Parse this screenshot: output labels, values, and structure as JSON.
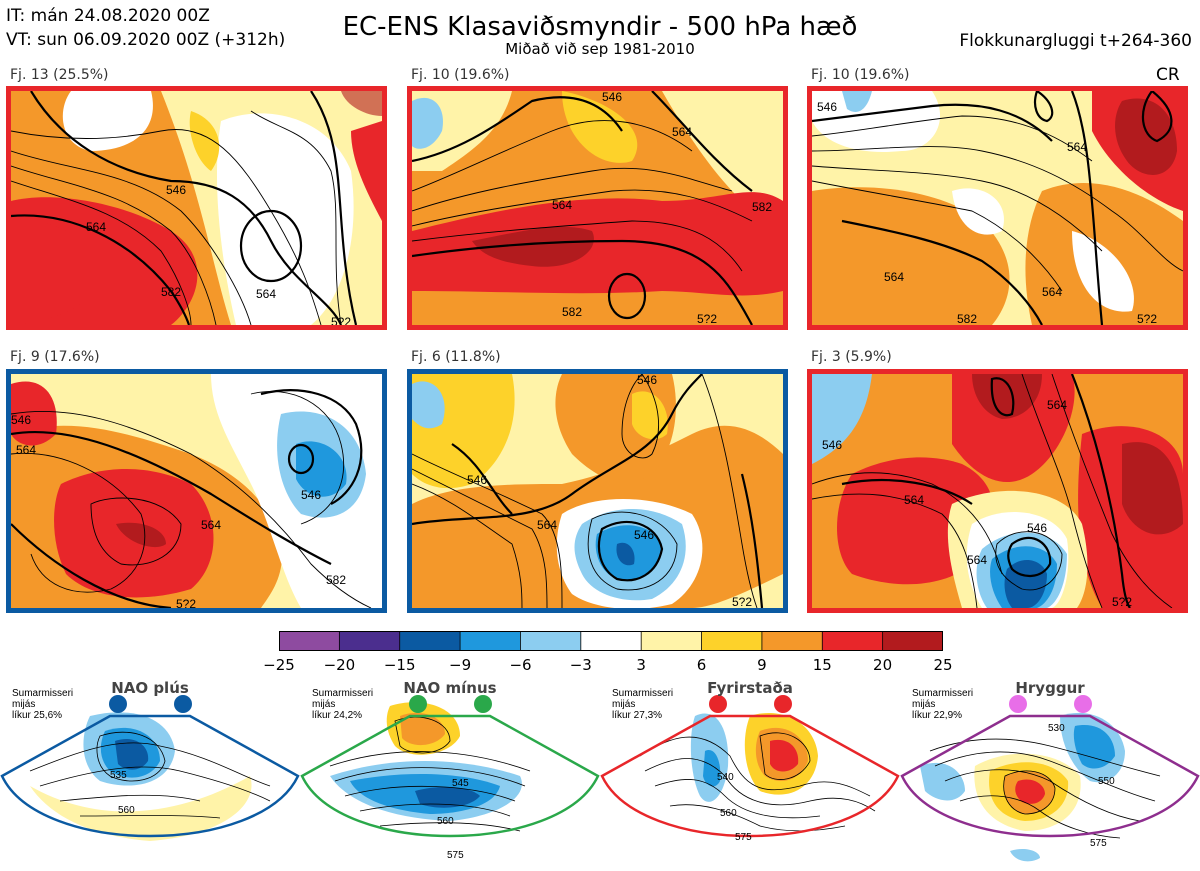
{
  "header": {
    "it": "IT: mán 24.08.2020 00Z",
    "vt": "VT: sun 06.09.2020 00Z  (+312h)",
    "title": "EC-ENS Klasaviðsmyndir - 500 hPa hæð",
    "subtitle": "Miðað við sep 1981-2010",
    "window": "Flokkunargluggi t+264-360"
  },
  "panels": [
    {
      "label": "Fj. 13 (25.5%)",
      "frame_color": "#e8262a",
      "contours": [
        "546",
        "564",
        "582",
        "564",
        "5?2"
      ],
      "corner": ""
    },
    {
      "label": "Fj. 10 (19.6%)",
      "frame_color": "#e8262a",
      "contours": [
        "546",
        "564",
        "582",
        "564",
        "582",
        "5?2"
      ],
      "corner": ""
    },
    {
      "label": "Fj. 10 (19.6%)",
      "frame_color": "#e8262a",
      "contours": [
        "564",
        "564",
        "582",
        "564",
        "5?2",
        "546"
      ],
      "corner": "CR"
    },
    {
      "label": "Fj. 9 (17.6%)",
      "frame_color": "#0b5aa2",
      "contours": [
        "546",
        "564",
        "564",
        "582",
        "546",
        "5?2"
      ],
      "corner": ""
    },
    {
      "label": "Fj. 6 (11.8%)",
      "frame_color": "#0b5aa2",
      "contours": [
        "546",
        "546",
        "564",
        "546",
        "5?2"
      ],
      "corner": ""
    },
    {
      "label": "Fj. 3 (5.9%)",
      "frame_color": "#e8262a",
      "contours": [
        "564",
        "546",
        "564",
        "564",
        "546",
        "5?2"
      ],
      "corner": ""
    }
  ],
  "colorbar": {
    "ticks": [
      "−25",
      "−20",
      "−15",
      "−9",
      "−6",
      "−3",
      "3",
      "6",
      "9",
      "15",
      "20",
      "25"
    ],
    "colors": [
      "#8e4ba0",
      "#4b2e8e",
      "#0b5aa2",
      "#1f98dd",
      "#8ccdf0",
      "#ffffff",
      "#fff3a8",
      "#fdd22a",
      "#f4982a",
      "#e8262a",
      "#b21b1e"
    ]
  },
  "regimes": [
    {
      "name": "NAO plús",
      "meta": [
        "Sumarmisseri",
        "mijás",
        "líkur 25,6%"
      ],
      "color": "#0b5aa2",
      "contours": [
        "535",
        "560"
      ]
    },
    {
      "name": "NAO mínus",
      "meta": [
        "Sumarmisseri",
        "mijás",
        "líkur 24,2%"
      ],
      "color": "#2aa84a",
      "contours": [
        "545",
        "560",
        "575"
      ]
    },
    {
      "name": "Fyrirstaða",
      "meta": [
        "Sumarmisseri",
        "mijás",
        "líkur 27,3%"
      ],
      "color": "#e8262a",
      "contours": [
        "540",
        "560",
        "575"
      ]
    },
    {
      "name": "Hryggur",
      "meta": [
        "Sumarmisseri",
        "mijás",
        "líkur 22,9%"
      ],
      "color": "#e86ee8",
      "contours": [
        "530",
        "550",
        "575"
      ]
    }
  ]
}
